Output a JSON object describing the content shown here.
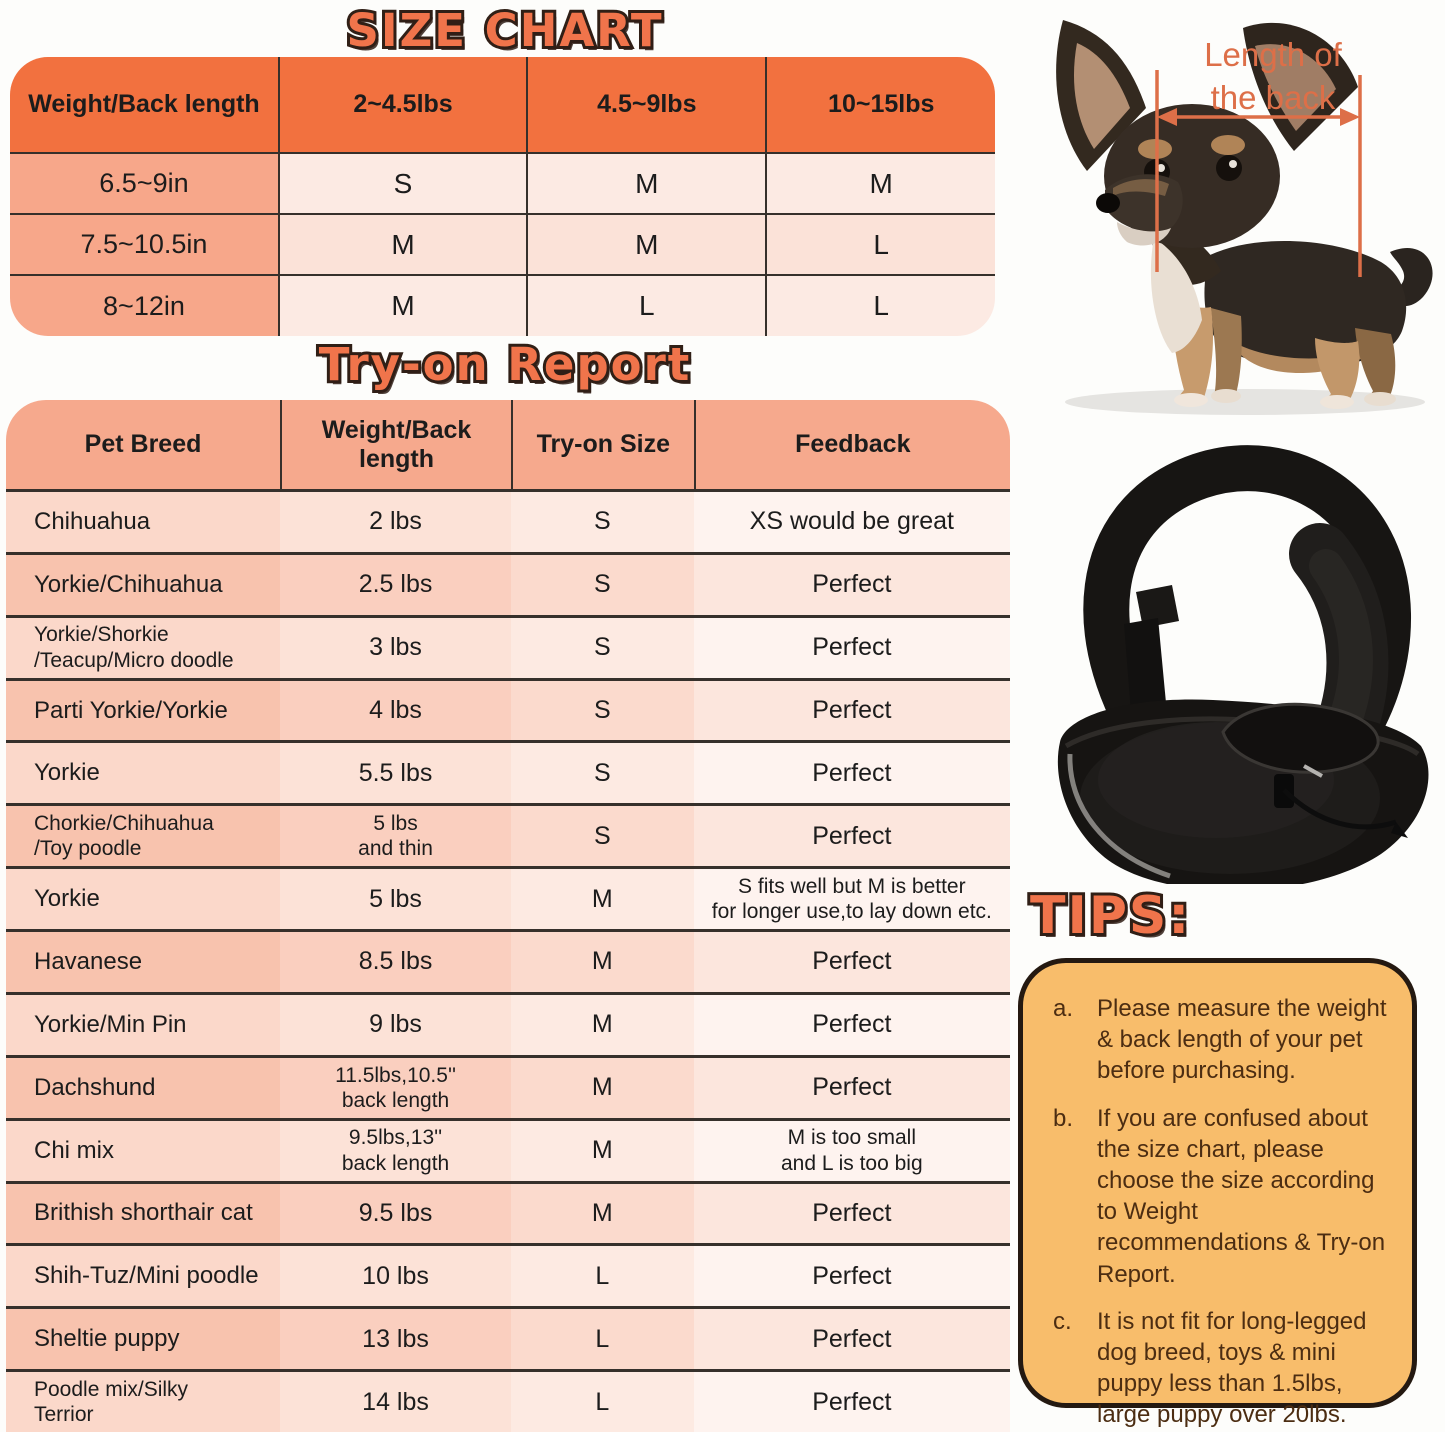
{
  "size_chart": {
    "title": "SIZE CHART",
    "header": [
      "Weight/Back length",
      "2~4.5lbs",
      "4.5~9lbs",
      "10~15lbs"
    ],
    "rows": [
      {
        "label": "6.5~9in",
        "values": [
          "S",
          "M",
          "M"
        ]
      },
      {
        "label": "7.5~10.5in",
        "values": [
          "M",
          "M",
          "L"
        ]
      },
      {
        "label": "8~12in",
        "values": [
          "M",
          "L",
          "L"
        ]
      }
    ]
  },
  "tryon": {
    "title": "Try-on Report",
    "header": [
      "Pet Breed",
      "Weight/Back length",
      "Try-on Size",
      "Feedback"
    ],
    "rows": [
      {
        "breed": "Chihuahua",
        "weight": "2 lbs",
        "size": "S",
        "feedback": "XS would be great"
      },
      {
        "breed": "Yorkie/Chihuahua",
        "weight": "2.5 lbs",
        "size": "S",
        "feedback": "Perfect"
      },
      {
        "breed": "Yorkie/Shorkie\n/Teacup/Micro doodle",
        "weight": "3 lbs",
        "size": "S",
        "feedback": "Perfect"
      },
      {
        "breed": "Parti Yorkie/Yorkie",
        "weight": "4 lbs",
        "size": "S",
        "feedback": "Perfect"
      },
      {
        "breed": "Yorkie",
        "weight": "5.5 lbs",
        "size": "S",
        "feedback": "Perfect"
      },
      {
        "breed": "Chorkie/Chihuahua\n/Toy poodle",
        "weight": "5 lbs\nand thin",
        "size": "S",
        "feedback": "Perfect"
      },
      {
        "breed": "Yorkie",
        "weight": "5 lbs",
        "size": "M",
        "feedback": "S fits well but M is better\nfor longer use,to lay down etc."
      },
      {
        "breed": "Havanese",
        "weight": "8.5 lbs",
        "size": "M",
        "feedback": "Perfect"
      },
      {
        "breed": "Yorkie/Min Pin",
        "weight": "9 lbs",
        "size": "M",
        "feedback": "Perfect"
      },
      {
        "breed": "Dachshund",
        "weight": "11.5lbs,10.5''\nback length",
        "size": "M",
        "feedback": "Perfect"
      },
      {
        "breed": "Chi mix",
        "weight": "9.5lbs,13''\nback length",
        "size": "M",
        "feedback": "M is too small\nand L is too big"
      },
      {
        "breed": "Brithish shorthair cat",
        "weight": "9.5 lbs",
        "size": "M",
        "feedback": "Perfect"
      },
      {
        "breed": "Shih-Tuz/Mini poodle",
        "weight": "10 lbs",
        "size": "L",
        "feedback": "Perfect"
      },
      {
        "breed": "Sheltie puppy",
        "weight": "13 lbs",
        "size": "L",
        "feedback": "Perfect"
      },
      {
        "breed": "Poodle mix/Silky\nTerrior",
        "weight": "14 lbs",
        "size": "L",
        "feedback": "Perfect"
      }
    ]
  },
  "dog_figure": {
    "back_length_label": "Length of\nthe back"
  },
  "tips": {
    "title": "TIPS:",
    "items": [
      {
        "key": "a.",
        "text": "Please measure the weight & back length of your pet before purchasing."
      },
      {
        "key": "b.",
        "text": "If you are confused about the size chart, please choose the size according to Weight recommendations & Try-on Report."
      },
      {
        "key": "c.",
        "text": "It is not fit for long-legged dog breed, toys & mini puppy less than 1.5lbs, large puppy over 20lbs."
      }
    ]
  },
  "colors": {
    "header_orange": "#F2713F",
    "salmon": "#F6A98D",
    "title_orange": "#F0744B",
    "annotation_orange": "#DD6F48",
    "tips_fill": "#F8BD6B",
    "separator": "#36302B"
  }
}
